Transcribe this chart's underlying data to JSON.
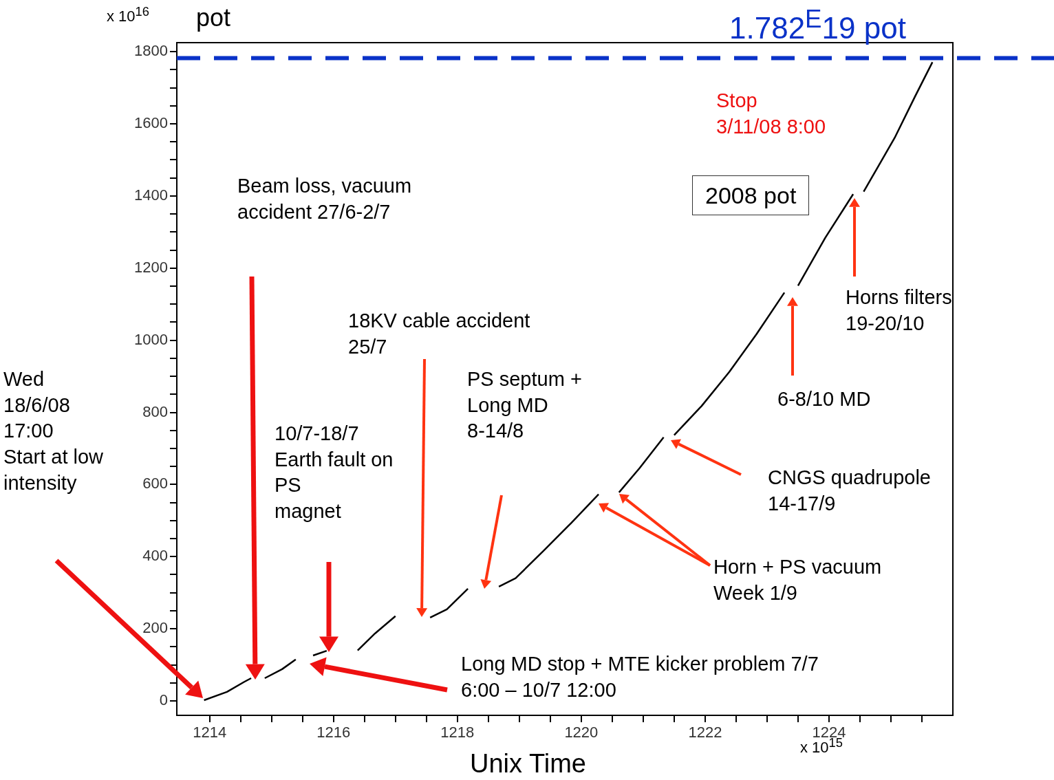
{
  "chart_data": {
    "type": "line",
    "xlabel": "Unix Time",
    "ylabel": "pot",
    "marker": "none",
    "x": [
      1213.91,
      1214.28,
      1214.56,
      1214.67,
      1214.78,
      1214.89,
      1215.17,
      1215.39,
      1215.53,
      1215.67,
      1215.89,
      1216.1,
      1216.39,
      1216.67,
      1217.0,
      1217.3,
      1217.56,
      1217.83,
      1218.17,
      1218.4,
      1218.67,
      1218.94,
      1219.39,
      1219.83,
      1220.28,
      1220.45,
      1220.61,
      1220.94,
      1221.33,
      1221.42,
      1221.5,
      1221.94,
      1222.39,
      1222.83,
      1223.28,
      1223.39,
      1223.5,
      1223.94,
      1224.39,
      1224.48,
      1224.56,
      1225.06,
      1225.39,
      1225.67
    ],
    "series": [
      {
        "color": "#000000",
        "values": [
          2,
          25,
          53,
          63,
          null,
          63,
          88,
          115,
          null,
          126,
          139,
          null,
          140,
          187,
          235,
          null,
          231,
          254,
          311,
          null,
          317,
          340,
          416,
          492,
          573,
          null,
          578,
          645,
          731,
          null,
          737,
          817,
          912,
          1017,
          1132,
          null,
          1151,
          1284,
          1405,
          null,
          1412,
          1561,
          1676,
          1771
        ]
      }
    ],
    "xlim": [
      1213.47,
      1226
    ],
    "xticks": [
      1214,
      {
        "value": 1214.5,
        "label": null
      },
      {
        "value": 1215,
        "label": null
      },
      {
        "value": 1215.5,
        "label": null
      },
      1216,
      {
        "value": 1216.5,
        "label": null
      },
      {
        "value": 1217,
        "label": null
      },
      {
        "value": 1217.5,
        "label": null
      },
      1218,
      {
        "value": 1218.5,
        "label": null
      },
      {
        "value": 1219,
        "label": null
      },
      {
        "value": 1219.5,
        "label": null
      },
      1220,
      {
        "value": 1220.5,
        "label": null
      },
      {
        "value": 1221,
        "label": null
      },
      {
        "value": 1221.5,
        "label": null
      },
      1222,
      {
        "value": 1222.5,
        "label": null
      },
      {
        "value": 1223,
        "label": null
      },
      {
        "value": 1223.5,
        "label": null
      },
      1224,
      {
        "value": 1224.5,
        "label": null
      },
      {
        "value": 1225,
        "label": null
      },
      {
        "value": 1225.5,
        "label": null
      }
    ],
    "ylim": [
      -40,
      1825
    ],
    "yticks": [
      0,
      {
        "value": 50,
        "label": null
      },
      {
        "value": 100,
        "label": null
      },
      {
        "value": 150,
        "label": null
      },
      200,
      {
        "value": 250,
        "label": null
      },
      {
        "value": 300,
        "label": null
      },
      {
        "value": 350,
        "label": null
      },
      400,
      {
        "value": 450,
        "label": null
      },
      {
        "value": 500,
        "label": null
      },
      {
        "value": 550,
        "label": null
      },
      600,
      {
        "value": 650,
        "label": null
      },
      {
        "value": 700,
        "label": null
      },
      {
        "value": 750,
        "label": null
      },
      800,
      {
        "value": 850,
        "label": null
      },
      {
        "value": 900,
        "label": null
      },
      {
        "value": 950,
        "label": null
      },
      1000,
      {
        "value": 1050,
        "label": null
      },
      {
        "value": 1100,
        "label": null
      },
      {
        "value": 1150,
        "label": null
      },
      1200,
      {
        "value": 1250,
        "label": null
      },
      {
        "value": 1300,
        "label": null
      },
      {
        "value": 1350,
        "label": null
      },
      1400,
      {
        "value": 1450,
        "label": null
      },
      {
        "value": 1500,
        "label": null
      },
      {
        "value": 1550,
        "label": null
      },
      1600,
      {
        "value": 1650,
        "label": null
      },
      {
        "value": 1700,
        "label": null
      },
      {
        "value": 1750,
        "label": null
      },
      1800
    ],
    "ref_lines": [
      {
        "axis": "y",
        "value": 1782,
        "label": "1.782$^{E}$19 pot",
        "color": "#0a32c8",
        "line_style": "dashed"
      }
    ],
    "annotations": [
      "x 10$^{16}$",
      "x 10$^{15}$",
      "Stop\n3/11/08 8:00",
      "2008 pot",
      "Beam loss, vacuum\naccident 27/6-2/7",
      "18KV cable accident\n25/7",
      "PS septum +\nLong MD\n8-14/8",
      "Wed\n18/6/08\n17:00\nStart at low\nintensity",
      "10/7-18/7\nEarth fault on\nPS\nmagnet",
      "Long MD stop + MTE kicker problem 7/7\n6:00 – 10/7 12:00",
      "Horn + PS vacuum\nWeek 1/9",
      "CNGS quadrupole\n14-17/9",
      "6-8/10 MD",
      "Horns filters\n19-20/10"
    ]
  }
}
